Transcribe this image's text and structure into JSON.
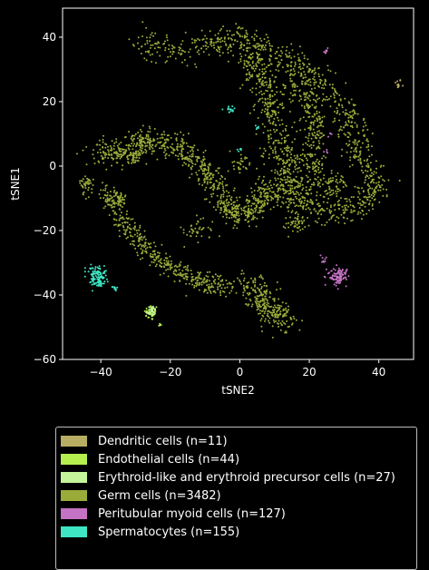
{
  "chart_data": {
    "type": "scatter",
    "title": "",
    "xlabel": "tSNE2",
    "ylabel": "tSNE1",
    "xlim": [
      -51,
      50
    ],
    "ylim": [
      -60,
      49
    ],
    "xticks": [
      -40,
      -20,
      0,
      20,
      40
    ],
    "yticks": [
      -60,
      -40,
      -20,
      0,
      20,
      40
    ],
    "xtick_labels": [
      "−40",
      "−20",
      "0",
      "20",
      "40"
    ],
    "ytick_labels": [
      "−60",
      "−40",
      "−20",
      "0",
      "20",
      "40"
    ],
    "grid": false,
    "legend_position": "below",
    "series": [
      {
        "name": "Dendritic cells (n=11)",
        "color": "#b7ad63",
        "clusters": [
          {
            "cx": 45.5,
            "cy": 25.5,
            "sx": 0.5,
            "sy": 0.8,
            "n": 11
          }
        ]
      },
      {
        "name": "Endothelial cells (n=44)",
        "color": "#b5ef4e",
        "clusters": [
          {
            "cx": -25.5,
            "cy": -45.5,
            "sx": 1.0,
            "sy": 1.2,
            "n": 40
          },
          {
            "cx": -22.5,
            "cy": -49.5,
            "sx": 0.4,
            "sy": 0.4,
            "n": 4
          }
        ]
      },
      {
        "name": "Erythroid-like and erythroid precursor cells (n=27)",
        "color": "#c4f59a",
        "clusters": [
          {
            "cx": -25.5,
            "cy": -45.0,
            "sx": 0.8,
            "sy": 0.9,
            "n": 27
          }
        ]
      },
      {
        "name": "Germ cells (n=3482)",
        "color": "#9aab3a",
        "clusters": [
          {
            "path": [
              [
                -29,
                38
              ],
              [
                -25,
                37
              ],
              [
                -20,
                36
              ],
              [
                -14,
                37
              ],
              [
                -8,
                38
              ],
              [
                -4,
                39
              ],
              [
                0,
                40
              ],
              [
                4,
                38
              ],
              [
                8,
                36
              ],
              [
                13,
                33
              ],
              [
                17,
                31
              ],
              [
                20,
                29
              ],
              [
                23,
                27
              ],
              [
                26,
                24
              ],
              [
                29,
                20
              ],
              [
                31,
                15
              ],
              [
                33,
                11
              ],
              [
                34,
                6
              ],
              [
                36,
                2
              ],
              [
                38,
                -2
              ],
              [
                40,
                -6
              ],
              [
                38,
                -10
              ],
              [
                35,
                -11
              ],
              [
                31,
                -13
              ],
              [
                27,
                -14
              ],
              [
                23,
                -14
              ],
              [
                19,
                -13
              ],
              [
                15,
                -11
              ],
              [
                12,
                -9
              ],
              [
                10,
                -7
              ],
              [
                8,
                -5
              ]
            ],
            "spread": 2.2,
            "n": 900
          },
          {
            "path": [
              [
                2,
                38
              ],
              [
                4,
                33
              ],
              [
                6,
                28
              ],
              [
                8,
                23
              ],
              [
                9,
                18
              ],
              [
                10,
                13
              ],
              [
                11,
                8
              ],
              [
                12,
                3
              ],
              [
                13,
                -2
              ],
              [
                15,
                -5
              ],
              [
                18,
                -7
              ],
              [
                22,
                -8
              ]
            ],
            "spread": 2.6,
            "n": 520
          },
          {
            "path": [
              [
                14,
                28
              ],
              [
                17,
                24
              ],
              [
                20,
                20
              ],
              [
                22,
                15
              ],
              [
                22,
                10
              ],
              [
                21,
                5
              ],
              [
                20,
                0
              ],
              [
                21,
                -3
              ]
            ],
            "spread": 2.0,
            "n": 260
          },
          {
            "path": [
              [
                -41,
                5
              ],
              [
                -37,
                4
              ],
              [
                -33,
                5
              ],
              [
                -29,
                7
              ],
              [
                -25,
                8
              ],
              [
                -21,
                7
              ],
              [
                -17,
                5
              ],
              [
                -13,
                2
              ],
              [
                -10,
                -2
              ],
              [
                -7,
                -6
              ],
              [
                -5,
                -10
              ],
              [
                -3,
                -14
              ],
              [
                0,
                -15
              ],
              [
                3,
                -14
              ],
              [
                6,
                -11
              ],
              [
                8,
                -8
              ]
            ],
            "spread": 2.0,
            "n": 780
          },
          {
            "path": [
              [
                -38,
                -8
              ],
              [
                -36,
                -13
              ],
              [
                -33,
                -18
              ],
              [
                -30,
                -22
              ],
              [
                -27,
                -26
              ],
              [
                -23,
                -29
              ],
              [
                -19,
                -32
              ],
              [
                -15,
                -34
              ],
              [
                -11,
                -36
              ],
              [
                -7,
                -37
              ],
              [
                -3,
                -38
              ]
            ],
            "spread": 1.6,
            "n": 420
          },
          {
            "path": [
              [
                2,
                -36
              ],
              [
                5,
                -39
              ],
              [
                7,
                -42
              ],
              [
                9,
                -45
              ],
              [
                11,
                -47
              ],
              [
                13,
                -48
              ]
            ],
            "spread": 2.2,
            "n": 270
          },
          {
            "cx": -44,
            "cy": -6,
            "sx": 1.0,
            "sy": 1.6,
            "n": 40
          },
          {
            "cx": -35,
            "cy": -10,
            "sx": 1.2,
            "sy": 1.2,
            "n": 40
          },
          {
            "cx": 0,
            "cy": 1,
            "sx": 1.5,
            "sy": 1.5,
            "n": 30
          },
          {
            "cx": 16,
            "cy": -18,
            "sx": 1.5,
            "sy": 1.5,
            "n": 40
          },
          {
            "cx": 27,
            "cy": -6,
            "sx": 2.0,
            "sy": 2.0,
            "n": 60
          },
          {
            "cx": -12,
            "cy": -20,
            "sx": 2.0,
            "sy": 2.0,
            "n": 40
          },
          {
            "cx": -30,
            "cy": 3,
            "sx": 1.2,
            "sy": 1.2,
            "n": 42
          }
        ]
      },
      {
        "name": "Peritubular myoid cells (n=127)",
        "color": "#c472c4",
        "clusters": [
          {
            "cx": 28.5,
            "cy": -34.0,
            "sx": 1.4,
            "sy": 1.4,
            "n": 103
          },
          {
            "cx": 24.5,
            "cy": -29.0,
            "sx": 0.5,
            "sy": 0.6,
            "n": 8
          },
          {
            "cx": 24.5,
            "cy": 35.5,
            "sx": 0.3,
            "sy": 0.6,
            "n": 8
          },
          {
            "cx": 25.0,
            "cy": 4.5,
            "sx": 0.3,
            "sy": 0.3,
            "n": 4
          },
          {
            "cx": 26.0,
            "cy": 10.0,
            "sx": 0.3,
            "sy": 0.3,
            "n": 4
          }
        ]
      },
      {
        "name": "Spermatocytes (n=155)",
        "color": "#3ee6c4",
        "clusters": [
          {
            "cx": -41.0,
            "cy": -34.5,
            "sx": 1.3,
            "sy": 1.6,
            "n": 120
          },
          {
            "cx": -36.0,
            "cy": -38.0,
            "sx": 0.4,
            "sy": 0.6,
            "n": 10
          },
          {
            "cx": -2.5,
            "cy": 17.5,
            "sx": 1.2,
            "sy": 0.5,
            "n": 15
          },
          {
            "cx": 0.0,
            "cy": 5.0,
            "sx": 0.4,
            "sy": 0.6,
            "n": 5
          },
          {
            "cx": 5.0,
            "cy": 12.0,
            "sx": 0.4,
            "sy": 0.4,
            "n": 5
          }
        ]
      }
    ]
  }
}
